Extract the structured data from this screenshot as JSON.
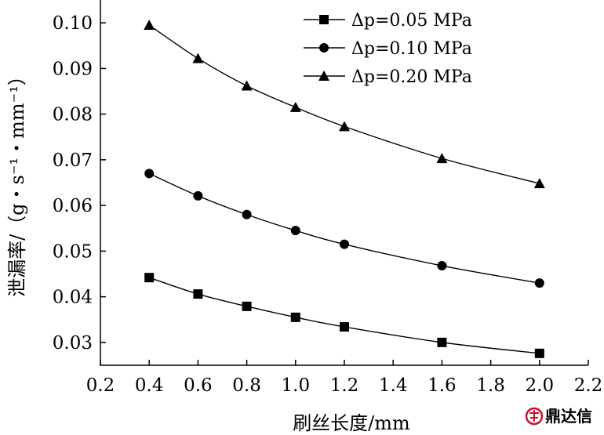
{
  "chart_data": {
    "type": "line",
    "xlabel": "刷丝长度/mm",
    "ylabel": "泄漏率/（g・s⁻¹・mm⁻¹）",
    "xlim": [
      0.2,
      2.2
    ],
    "ylim": [
      0.025,
      0.105
    ],
    "xticks": [
      "0.2",
      "0.4",
      "0.6",
      "0.8",
      "1.0",
      "1.2",
      "1.4",
      "1.6",
      "1.8",
      "2.0",
      "2.2"
    ],
    "yticks": [
      "0.03",
      "0.04",
      "0.05",
      "0.06",
      "0.07",
      "0.08",
      "0.09",
      "0.10"
    ],
    "x": [
      0.4,
      0.6,
      0.8,
      1.0,
      1.2,
      1.6,
      2.0
    ],
    "grid": false,
    "legend_position": "top-right",
    "series": [
      {
        "name": "Δp=0.05 MPa",
        "marker": "square",
        "values": [
          0.0442,
          0.0406,
          0.0379,
          0.0355,
          0.0334,
          0.03,
          0.0276
        ]
      },
      {
        "name": "Δp=0.10 MPa",
        "marker": "circle",
        "values": [
          0.067,
          0.0621,
          0.058,
          0.0545,
          0.0515,
          0.0468,
          0.043
        ]
      },
      {
        "name": "Δp=0.20 MPa",
        "marker": "triangle",
        "values": [
          0.0995,
          0.0922,
          0.0862,
          0.0815,
          0.0773,
          0.0703,
          0.0648
        ]
      }
    ]
  },
  "watermark": {
    "text": "鼎达信",
    "icon": "logo-icon",
    "color": "#c8102e"
  }
}
